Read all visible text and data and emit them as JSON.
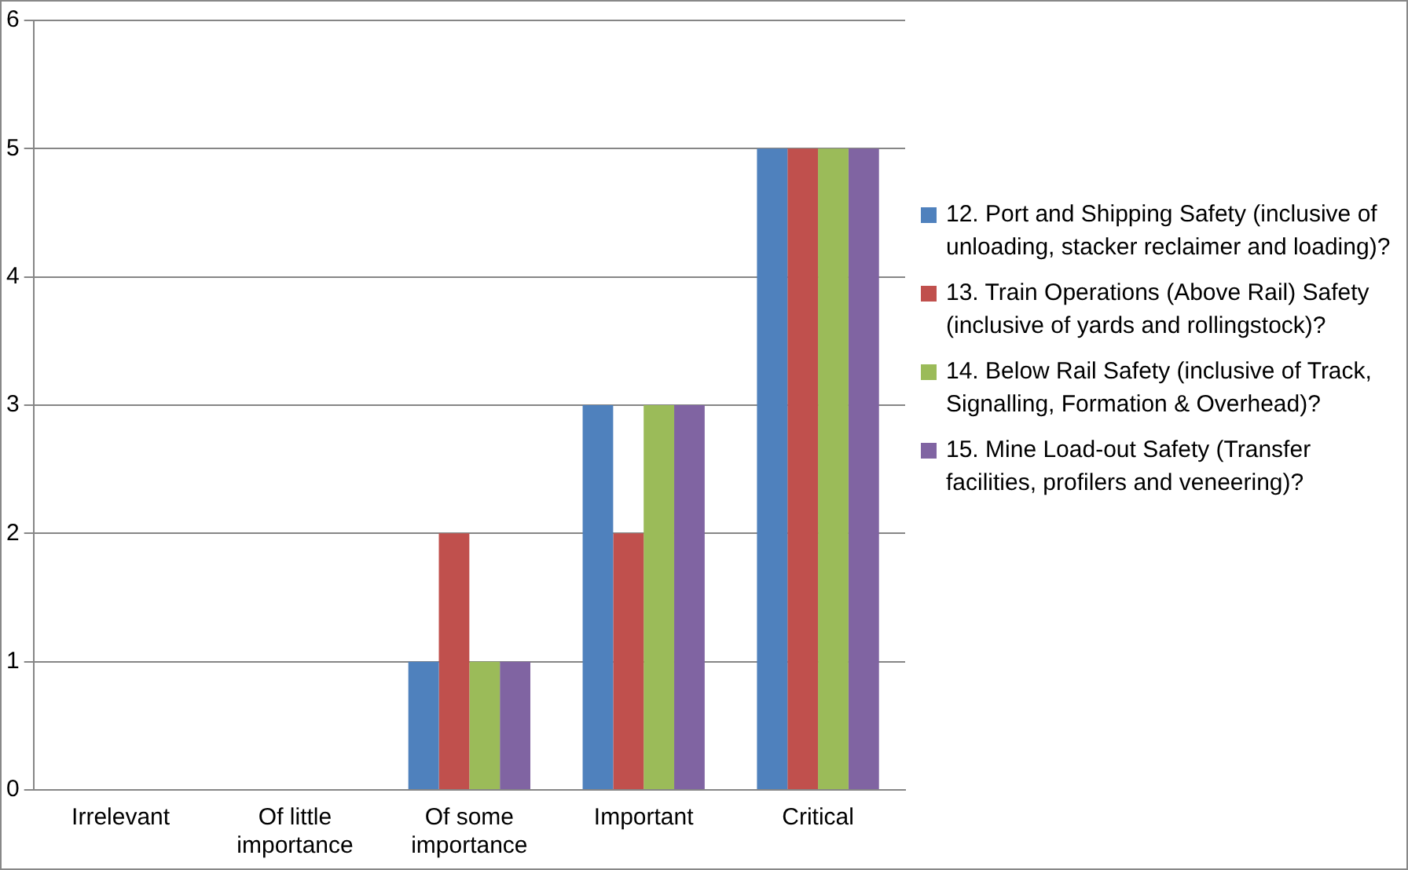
{
  "chart_data": {
    "type": "bar",
    "categories": [
      "Irrelevant",
      "Of little importance",
      "Of some importance",
      "Important",
      "Critical"
    ],
    "series": [
      {
        "name": "12. Port and Shipping Safety (inclusive of unloading, stacker reclaimer and loading)?",
        "color": "#4f81bd",
        "values": [
          0,
          0,
          1,
          3,
          5
        ]
      },
      {
        "name": "13. Train Operations (Above Rail) Safety (inclusive of yards and rollingstock)?",
        "color": "#c0504d",
        "values": [
          0,
          0,
          2,
          2,
          5
        ]
      },
      {
        "name": "14. Below Rail Safety (inclusive of Track, Signalling, Formation & Overhead)?",
        "color": "#9bbb59",
        "values": [
          0,
          0,
          1,
          3,
          5
        ]
      },
      {
        "name": "15. Mine Load-out Safety (Transfer facilities, profilers and veneering)?",
        "color": "#8064a2",
        "values": [
          0,
          0,
          1,
          3,
          5
        ]
      }
    ],
    "ylim": [
      0,
      6
    ],
    "yticks": [
      0,
      1,
      2,
      3,
      4,
      5,
      6
    ],
    "grid": "y",
    "legend": "right"
  }
}
